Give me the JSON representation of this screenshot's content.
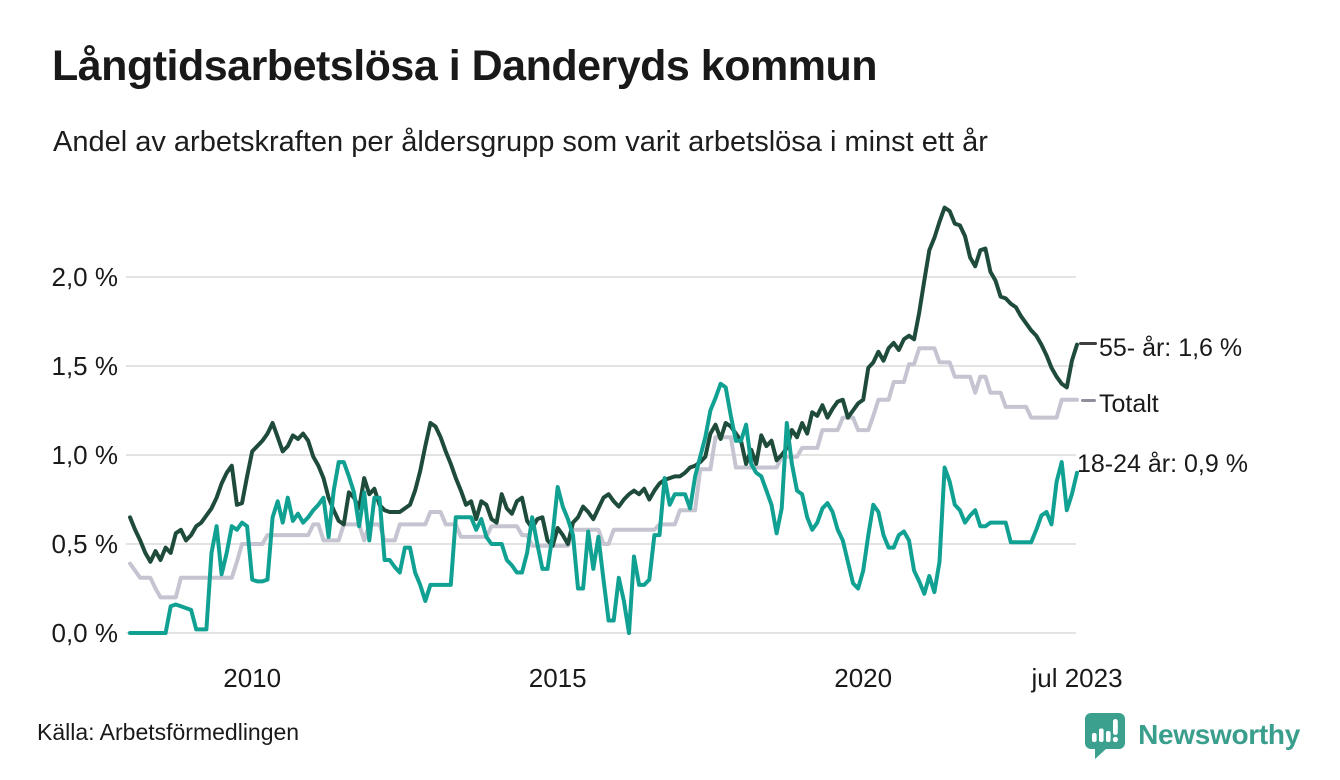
{
  "header": {
    "title": "Långtidsarbetslösa i Danderyds kommun",
    "subtitle": "Andel av arbetskraften per åldersgrupp som varit arbetslösa i minst ett år"
  },
  "footer": {
    "source": "Källa: Arbetsförmedlingen",
    "brand": "Newsworthy",
    "brand_color": "#3a9e8c"
  },
  "colors": {
    "text": "#191919",
    "grid": "#e3e3e3",
    "series_55plus": "#1e4b3a",
    "series_total": "#c5c4d1",
    "series_18_24": "#10a193"
  },
  "chart_data": {
    "type": "line",
    "x_start": "2008-01",
    "x_end": "2023-07",
    "x_interval": "monthly",
    "ylim": [
      0,
      2.45
    ],
    "grid": "horizontal",
    "legend_position": "right-end-labels",
    "y_ticks": [
      {
        "value": 0.0,
        "label": "0,0 %"
      },
      {
        "value": 0.5,
        "label": "0,5 %"
      },
      {
        "value": 1.0,
        "label": "1,0 %"
      },
      {
        "value": 1.5,
        "label": "1,5 %"
      },
      {
        "value": 2.0,
        "label": "2,0 %"
      }
    ],
    "x_ticks": [
      {
        "index": 24,
        "label": "2010"
      },
      {
        "index": 84,
        "label": "2015"
      },
      {
        "index": 144,
        "label": "2020"
      },
      {
        "index": 186,
        "label": "jul 2023"
      }
    ],
    "series": [
      {
        "name": "55- år",
        "end_label": "55- år: 1,6 %",
        "end_value": "1,6 %",
        "color": "#1e4b3a",
        "values": [
          0.65,
          0.58,
          0.52,
          0.45,
          0.4,
          0.46,
          0.41,
          0.48,
          0.45,
          0.56,
          0.58,
          0.52,
          0.55,
          0.6,
          0.62,
          0.66,
          0.7,
          0.76,
          0.84,
          0.9,
          0.94,
          0.72,
          0.73,
          0.88,
          1.02,
          1.05,
          1.08,
          1.12,
          1.18,
          1.1,
          1.02,
          1.05,
          1.11,
          1.09,
          1.12,
          1.08,
          0.99,
          0.94,
          0.87,
          0.76,
          0.69,
          0.63,
          0.61,
          0.79,
          0.76,
          0.7,
          0.87,
          0.78,
          0.81,
          0.72,
          0.69,
          0.68,
          0.68,
          0.68,
          0.7,
          0.72,
          0.8,
          0.91,
          1.05,
          1.18,
          1.16,
          1.1,
          1.02,
          0.95,
          0.87,
          0.8,
          0.72,
          0.74,
          0.64,
          0.74,
          0.72,
          0.64,
          0.62,
          0.78,
          0.7,
          0.67,
          0.74,
          0.76,
          0.63,
          0.59,
          0.64,
          0.65,
          0.52,
          0.49,
          0.59,
          0.55,
          0.5,
          0.62,
          0.65,
          0.71,
          0.68,
          0.64,
          0.7,
          0.76,
          0.78,
          0.74,
          0.71,
          0.75,
          0.78,
          0.8,
          0.78,
          0.81,
          0.75,
          0.8,
          0.84,
          0.86,
          0.87,
          0.88,
          0.88,
          0.9,
          0.93,
          0.94,
          0.96,
          0.99,
          1.12,
          1.17,
          1.09,
          1.18,
          1.16,
          1.12,
          1.08,
          0.95,
          1.03,
          0.95,
          1.11,
          1.05,
          1.08,
          0.97,
          1.0,
          1.04,
          1.14,
          1.1,
          1.18,
          1.12,
          1.24,
          1.22,
          1.28,
          1.21,
          1.26,
          1.3,
          1.31,
          1.21,
          1.25,
          1.29,
          1.31,
          1.49,
          1.52,
          1.58,
          1.53,
          1.6,
          1.63,
          1.59,
          1.65,
          1.67,
          1.65,
          1.8,
          1.98,
          2.15,
          2.22,
          2.31,
          2.39,
          2.37,
          2.3,
          2.29,
          2.23,
          2.11,
          2.06,
          2.15,
          2.16,
          2.03,
          1.98,
          1.89,
          1.88,
          1.85,
          1.83,
          1.78,
          1.74,
          1.7,
          1.67,
          1.62,
          1.56,
          1.49,
          1.44,
          1.4,
          1.38,
          1.53,
          1.62
        ]
      },
      {
        "name": "Totalt",
        "end_label": "Totalt",
        "color": "#c5c4d1",
        "values": [
          0.39,
          0.35,
          0.31,
          0.31,
          0.31,
          0.25,
          0.2,
          0.2,
          0.2,
          0.2,
          0.31,
          0.31,
          0.31,
          0.31,
          0.31,
          0.31,
          0.31,
          0.31,
          0.31,
          0.31,
          0.31,
          0.4,
          0.5,
          0.5,
          0.5,
          0.5,
          0.5,
          0.55,
          0.55,
          0.55,
          0.55,
          0.55,
          0.55,
          0.55,
          0.55,
          0.55,
          0.61,
          0.61,
          0.52,
          0.52,
          0.52,
          0.52,
          0.61,
          0.61,
          0.61,
          0.61,
          0.52,
          0.61,
          0.61,
          0.61,
          0.52,
          0.52,
          0.52,
          0.61,
          0.61,
          0.61,
          0.61,
          0.61,
          0.61,
          0.68,
          0.68,
          0.68,
          0.61,
          0.61,
          0.61,
          0.54,
          0.54,
          0.54,
          0.54,
          0.54,
          0.54,
          0.6,
          0.6,
          0.6,
          0.6,
          0.6,
          0.6,
          0.55,
          0.55,
          0.49,
          0.49,
          0.49,
          0.49,
          0.49,
          0.49,
          0.49,
          0.49,
          0.58,
          0.58,
          0.58,
          0.58,
          0.58,
          0.58,
          0.5,
          0.5,
          0.58,
          0.58,
          0.58,
          0.58,
          0.58,
          0.58,
          0.58,
          0.58,
          0.58,
          0.61,
          0.61,
          0.61,
          0.61,
          0.69,
          0.69,
          0.69,
          0.69,
          0.92,
          0.92,
          0.92,
          1.1,
          1.1,
          1.1,
          1.1,
          0.93,
          0.93,
          0.93,
          0.93,
          0.93,
          0.93,
          0.93,
          0.93,
          0.93,
          0.99,
          0.99,
          0.99,
          0.99,
          1.04,
          1.04,
          1.04,
          1.04,
          1.14,
          1.14,
          1.14,
          1.14,
          1.21,
          1.21,
          1.21,
          1.14,
          1.14,
          1.14,
          1.22,
          1.31,
          1.31,
          1.31,
          1.41,
          1.41,
          1.41,
          1.51,
          1.51,
          1.6,
          1.6,
          1.6,
          1.6,
          1.52,
          1.52,
          1.52,
          1.44,
          1.44,
          1.44,
          1.44,
          1.35,
          1.44,
          1.44,
          1.35,
          1.35,
          1.35,
          1.27,
          1.27,
          1.27,
          1.27,
          1.27,
          1.21,
          1.21,
          1.21,
          1.21,
          1.21,
          1.21,
          1.31,
          1.31,
          1.31,
          1.31
        ]
      },
      {
        "name": "18-24 år",
        "end_label": "18-24 år: 0,9 %",
        "end_value": "0,9 %",
        "color": "#10a193",
        "values": [
          0.0,
          0.0,
          0.0,
          0.0,
          0.0,
          0.0,
          0.0,
          0.0,
          0.15,
          0.16,
          0.15,
          0.14,
          0.13,
          0.02,
          0.02,
          0.02,
          0.45,
          0.6,
          0.33,
          0.45,
          0.6,
          0.58,
          0.62,
          0.6,
          0.3,
          0.29,
          0.29,
          0.3,
          0.65,
          0.74,
          0.62,
          0.76,
          0.63,
          0.67,
          0.62,
          0.65,
          0.69,
          0.72,
          0.76,
          0.54,
          0.8,
          0.96,
          0.96,
          0.88,
          0.79,
          0.6,
          0.79,
          0.52,
          0.76,
          0.76,
          0.41,
          0.41,
          0.37,
          0.34,
          0.48,
          0.48,
          0.34,
          0.27,
          0.18,
          0.27,
          0.27,
          0.27,
          0.27,
          0.27,
          0.65,
          0.65,
          0.65,
          0.65,
          0.58,
          0.64,
          0.54,
          0.5,
          0.5,
          0.5,
          0.41,
          0.38,
          0.34,
          0.34,
          0.45,
          0.65,
          0.5,
          0.36,
          0.36,
          0.55,
          0.82,
          0.71,
          0.64,
          0.55,
          0.25,
          0.25,
          0.57,
          0.36,
          0.54,
          0.3,
          0.07,
          0.07,
          0.31,
          0.18,
          0.0,
          0.43,
          0.27,
          0.27,
          0.3,
          0.55,
          0.55,
          0.87,
          0.72,
          0.78,
          0.78,
          0.78,
          0.7,
          0.88,
          0.99,
          1.1,
          1.25,
          1.32,
          1.4,
          1.38,
          1.22,
          1.08,
          1.08,
          1.17,
          0.95,
          0.9,
          0.88,
          0.8,
          0.72,
          0.56,
          0.7,
          1.18,
          0.95,
          0.8,
          0.78,
          0.65,
          0.58,
          0.62,
          0.7,
          0.73,
          0.68,
          0.58,
          0.52,
          0.4,
          0.28,
          0.25,
          0.35,
          0.55,
          0.72,
          0.68,
          0.55,
          0.48,
          0.48,
          0.55,
          0.57,
          0.52,
          0.35,
          0.29,
          0.22,
          0.32,
          0.23,
          0.4,
          0.93,
          0.85,
          0.72,
          0.69,
          0.62,
          0.66,
          0.69,
          0.6,
          0.6,
          0.62,
          0.62,
          0.62,
          0.62,
          0.51,
          0.51,
          0.51,
          0.51,
          0.51,
          0.58,
          0.66,
          0.68,
          0.61,
          0.85,
          0.96,
          0.69,
          0.78,
          0.9
        ]
      }
    ]
  }
}
